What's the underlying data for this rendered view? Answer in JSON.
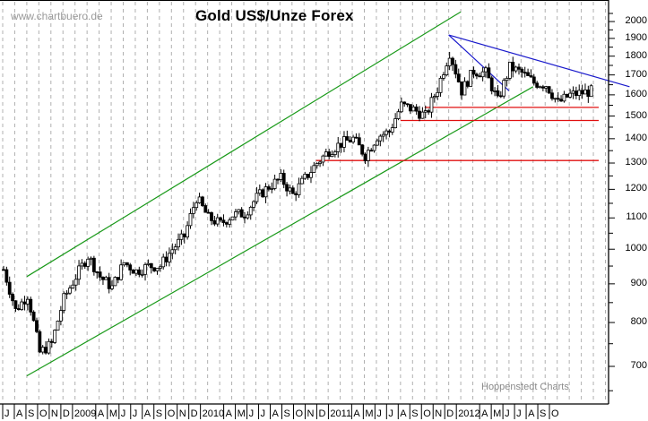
{
  "header": {
    "watermark": "www.chartbuero.de",
    "title": "Gold US$/Unze Forex",
    "credit": "Hoppenstedt Charts"
  },
  "colors": {
    "background": "#ffffff",
    "grid": "#b0b0b0",
    "candle": "#000000",
    "channel": "#1a9a1a",
    "downtrend": "#1a1acc",
    "support": "#e01010"
  },
  "chart_data": {
    "type": "candlestick",
    "title": "Gold US$/Unze Forex",
    "xlabel": "",
    "ylabel": "US$/Unze",
    "yscale": "log",
    "ylim": [
      640,
      2080
    ],
    "y_ticks": [
      2000,
      1900,
      1800,
      1700,
      1600,
      1500,
      1400,
      1300,
      1200,
      1100,
      1000,
      900,
      800,
      700
    ],
    "x_tick_labels": [
      "J",
      "A",
      "S",
      "O",
      "N",
      "D",
      "2009",
      "A",
      "M",
      "J",
      "J",
      "A",
      "S",
      "O",
      "N",
      "D",
      "2010",
      "A",
      "M",
      "J",
      "J",
      "A",
      "S",
      "O",
      "N",
      "D",
      "2011",
      "A",
      "M",
      "J",
      "J",
      "A",
      "S",
      "O",
      "N",
      "D",
      "2012",
      "A",
      "M",
      "J",
      "J",
      "A",
      "S",
      "O"
    ],
    "grid": true,
    "legend": null,
    "categories": [
      "2008-07",
      "2008-08",
      "2008-09",
      "2008-10",
      "2008-11",
      "2008-12",
      "2009-01",
      "2009-02",
      "2009-03",
      "2009-04",
      "2009-05",
      "2009-06",
      "2009-07",
      "2009-08",
      "2009-09",
      "2009-10",
      "2009-11",
      "2009-12",
      "2010-01",
      "2010-02",
      "2010-03",
      "2010-04",
      "2010-05",
      "2010-06",
      "2010-07",
      "2010-08",
      "2010-09",
      "2010-10",
      "2010-11",
      "2010-12",
      "2011-01",
      "2011-02",
      "2011-03",
      "2011-04",
      "2011-05",
      "2011-06",
      "2011-07",
      "2011-08",
      "2011-09",
      "2011-10",
      "2011-11",
      "2011-12",
      "2012-01",
      "2012-02",
      "2012-03",
      "2012-04",
      "2012-05",
      "2012-06",
      "2012-07",
      "2012-08"
    ],
    "values": [
      940,
      830,
      870,
      730,
      750,
      860,
      920,
      980,
      920,
      890,
      960,
      935,
      950,
      950,
      1000,
      1040,
      1170,
      1100,
      1080,
      1110,
      1115,
      1170,
      1210,
      1240,
      1180,
      1240,
      1300,
      1350,
      1380,
      1400,
      1330,
      1410,
      1430,
      1550,
      1530,
      1500,
      1630,
      1820,
      1620,
      1720,
      1710,
      1570,
      1740,
      1710,
      1660,
      1650,
      1560,
      1600,
      1610,
      1620
    ],
    "annotations": {
      "uptrend_channel_upper": [
        [
          "2008-09",
          920
        ],
        [
          "2011-09",
          2060
        ]
      ],
      "uptrend_channel_lower": [
        [
          "2008-09",
          680
        ],
        [
          "2012-03",
          1640
        ]
      ],
      "downtrend_upper": [
        [
          "2011-08",
          1920
        ],
        [
          "2012-11",
          1640
        ]
      ],
      "downtrend_steep": [
        [
          "2011-08",
          1920
        ],
        [
          "2012-01",
          1620
        ]
      ],
      "support_lines": [
        1310,
        1480,
        1540
      ]
    }
  }
}
